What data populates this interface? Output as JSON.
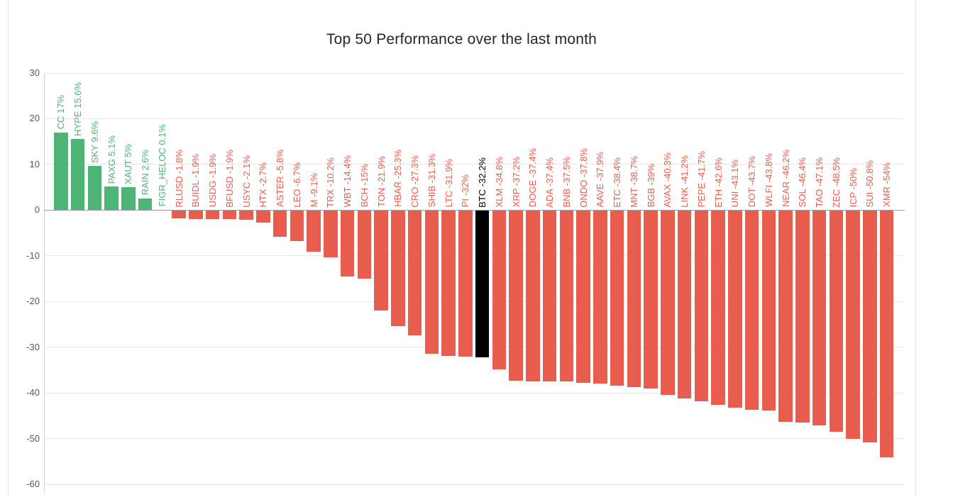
{
  "title": "Top 50 Performance over the last month",
  "colors": {
    "positive": "#4fb477",
    "negative": "#e85d4d",
    "highlight": "#000000",
    "grid": "#e8e8e8",
    "zero_line": "#9d9d9d",
    "axis_line": "#d2d2d2",
    "tick_text": "#595959",
    "title_text": "#262626",
    "card_border": "#e2e2e2"
  },
  "chart_data": {
    "type": "bar",
    "title": "Top 50 Performance over the last month",
    "xlabel": "",
    "ylabel": "",
    "ylim": [
      -60,
      30
    ],
    "yticks": [
      30,
      20,
      10,
      0,
      -10,
      -20,
      -30,
      -40,
      -50,
      -60
    ],
    "grid": true,
    "legend": false,
    "highlight_category": "BTC",
    "value_unit": "%",
    "categories": [
      "CC",
      "HYPE",
      "SKY",
      "PAXG",
      "XAUT",
      "RAIN",
      "FIGR_HELOC",
      "RLUSD",
      "BUIDL",
      "USDG",
      "BFUSD",
      "USYC",
      "HTX",
      "ASTER",
      "LEO",
      "M",
      "TRX",
      "WBT",
      "BCH",
      "TON",
      "HBAR",
      "CRO",
      "SHIB",
      "LTC",
      "PI",
      "BTC",
      "XLM",
      "XRP",
      "DOGE",
      "ADA",
      "BNB",
      "ONDO",
      "AAVE",
      "ETC",
      "MNT",
      "BGB",
      "AVAX",
      "LINK",
      "PEPE",
      "ETH",
      "UNI",
      "DOT",
      "WLFI",
      "NEAR",
      "SOL",
      "TAO",
      "ZEC",
      "ICP",
      "SUI",
      "XMR"
    ],
    "values": [
      17,
      15.6,
      9.6,
      5.1,
      5,
      2.6,
      0.1,
      -1.8,
      -1.9,
      -1.9,
      -1.9,
      -2.1,
      -2.7,
      -5.8,
      -6.7,
      -9.1,
      -10.2,
      -14.4,
      -15,
      -21.9,
      -25.3,
      -27.3,
      -31.3,
      -31.9,
      -32,
      -32.2,
      -34.8,
      -37.2,
      -37.4,
      -37.4,
      -37.5,
      -37.8,
      -37.9,
      -38.4,
      -38.7,
      -39,
      -40.3,
      -41.2,
      -41.7,
      -42.6,
      -43.1,
      -43.7,
      -43.8,
      -46.2,
      -46.4,
      -47.1,
      -48.5,
      -50,
      -50.8,
      -54
    ],
    "labels": [
      "CC 17%",
      "HYPE 15.6%",
      "SKY 9.6%",
      "PAXG 5.1%",
      "XAUT 5%",
      "RAIN 2.6%",
      "FIGR_HELOC 0.1%",
      "RLUSD -1.8%",
      "BUIDL -1.9%",
      "USDG -1.9%",
      "BFUSD -1.9%",
      "USYC -2.1%",
      "HTX -2.7%",
      "ASTER -5.8%",
      "LEO -6.7%",
      "M -9.1%",
      "TRX -10.2%",
      "WBT -14.4%",
      "BCH -15%",
      "TON -21.9%",
      "HBAR -25.3%",
      "CRO -27.3%",
      "SHIB -31.3%",
      "LTC -31.9%",
      "PI -32%",
      "BTC -32.2%",
      "XLM -34.8%",
      "XRP -37.2%",
      "DOGE -37.4%",
      "ADA -37.4%",
      "BNB -37.5%",
      "ONDO -37.8%",
      "AAVE -37.9%",
      "ETC -38.4%",
      "MNT -38.7%",
      "BGB -39%",
      "AVAX -40.3%",
      "LINK -41.2%",
      "PEPE -41.7%",
      "ETH -42.6%",
      "UNI -43.1%",
      "DOT -43.7%",
      "WLFI -43.8%",
      "NEAR -46.2%",
      "SOL -46.4%",
      "TAO -47.1%",
      "ZEC -48.5%",
      "ICP -50%",
      "SUI -50.8%",
      "XMR -54%"
    ]
  }
}
